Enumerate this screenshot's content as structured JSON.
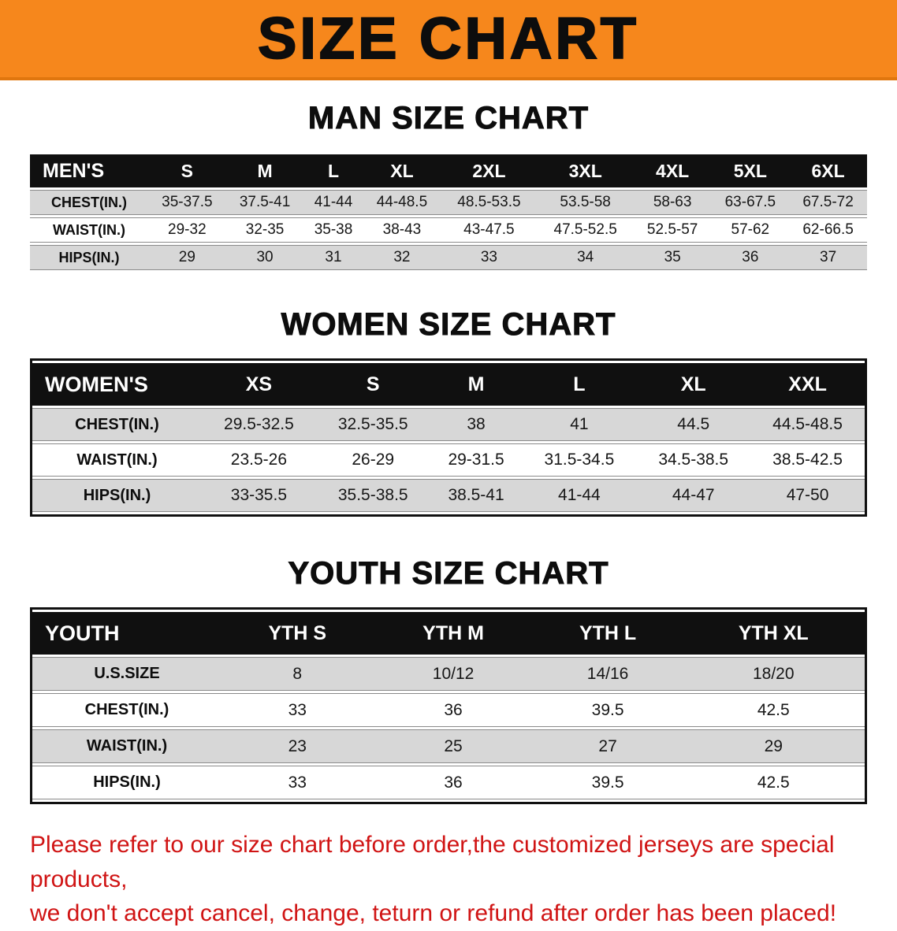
{
  "banner": {
    "title": "SIZE CHART",
    "bg_color": "#f6871c"
  },
  "men": {
    "heading": "MAN SIZE CHART",
    "header": [
      "MEN'S",
      "S",
      "M",
      "L",
      "XL",
      "2XL",
      "3XL",
      "4XL",
      "5XL",
      "6XL"
    ],
    "rows": [
      [
        "CHEST(IN.)",
        "35-37.5",
        "37.5-41",
        "41-44",
        "44-48.5",
        "48.5-53.5",
        "53.5-58",
        "58-63",
        "63-67.5",
        "67.5-72"
      ],
      [
        "WAIST(IN.)",
        "29-32",
        "32-35",
        "35-38",
        "38-43",
        "43-47.5",
        "47.5-52.5",
        "52.5-57",
        "57-62",
        "62-66.5"
      ],
      [
        "HIPS(IN.)",
        "29",
        "30",
        "31",
        "32",
        "33",
        "34",
        "35",
        "36",
        "37"
      ]
    ]
  },
  "women": {
    "heading": "WOMEN SIZE CHART",
    "header": [
      "WOMEN'S",
      "XS",
      "S",
      "M",
      "L",
      "XL",
      "XXL"
    ],
    "rows": [
      [
        "CHEST(IN.)",
        "29.5-32.5",
        "32.5-35.5",
        "38",
        "41",
        "44.5",
        "44.5-48.5"
      ],
      [
        "WAIST(IN.)",
        "23.5-26",
        "26-29",
        "29-31.5",
        "31.5-34.5",
        "34.5-38.5",
        "38.5-42.5"
      ],
      [
        "HIPS(IN.)",
        "33-35.5",
        "35.5-38.5",
        "38.5-41",
        "41-44",
        "44-47",
        "47-50"
      ]
    ]
  },
  "youth": {
    "heading": "YOUTH SIZE CHART",
    "header": [
      "YOUTH",
      "YTH S",
      "YTH M",
      "YTH L",
      "YTH XL"
    ],
    "rows": [
      [
        "U.S.SIZE",
        "8",
        "10/12",
        "14/16",
        "18/20"
      ],
      [
        "CHEST(IN.)",
        "33",
        "36",
        "39.5",
        "42.5"
      ],
      [
        "WAIST(IN.)",
        "23",
        "25",
        "27",
        "29"
      ],
      [
        "HIPS(IN.)",
        "33",
        "36",
        "39.5",
        "42.5"
      ]
    ]
  },
  "notice": {
    "line1": "Please refer to our size chart before order,the customized jerseys are special products,",
    "line2": "we don't accept cancel, change, teturn or refund after order has been placed!"
  }
}
